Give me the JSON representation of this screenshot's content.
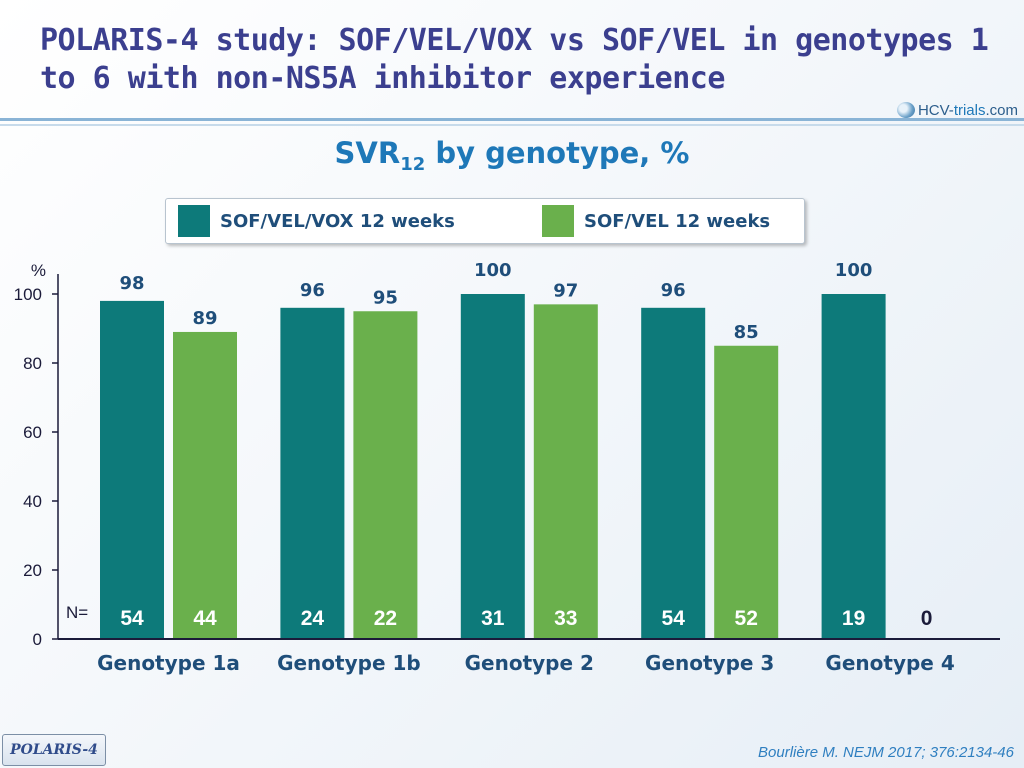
{
  "slide": {
    "title": "POLARIS-4 study: SOF/VEL/VOX vs SOF/VEL in genotypes 1 to 6 with non-NS5A inhibitor experience",
    "subtitle_main": "SVR",
    "subtitle_sub": "12",
    "subtitle_rest": " by genotype, %",
    "logo_text_a": "HCV-",
    "logo_text_b": "trials",
    "logo_text_c": ".com",
    "badge": "POLARIS-4",
    "citation": "Bourlière M. NEJM 2017; 376:2134-46"
  },
  "chart_data": {
    "type": "bar",
    "title": "SVR12 by genotype, %",
    "ylabel": "%",
    "ylim": [
      0,
      100
    ],
    "yticks": [
      0,
      20,
      40,
      60,
      80,
      100
    ],
    "n_prefix": "N=",
    "categories": [
      "Genotype 1a",
      "Genotype 1b",
      "Genotype 2",
      "Genotype 3",
      "Genotype 4"
    ],
    "series": [
      {
        "name": "SOF/VEL/VOX 12 weeks",
        "color": "#0d7a7a",
        "values": [
          98,
          96,
          100,
          96,
          100
        ],
        "labels": [
          "98",
          "96",
          "100",
          "96",
          "100"
        ],
        "n": [
          "54",
          "24",
          "31",
          "54",
          "19"
        ]
      },
      {
        "name": "SOF/VEL 12 weeks",
        "color": "#6ab04c",
        "values": [
          89,
          95,
          97,
          85,
          null
        ],
        "labels": [
          "89",
          "95",
          "97",
          "85",
          ""
        ],
        "n": [
          "44",
          "22",
          "33",
          "52",
          "0"
        ]
      }
    ],
    "legend": "top"
  }
}
